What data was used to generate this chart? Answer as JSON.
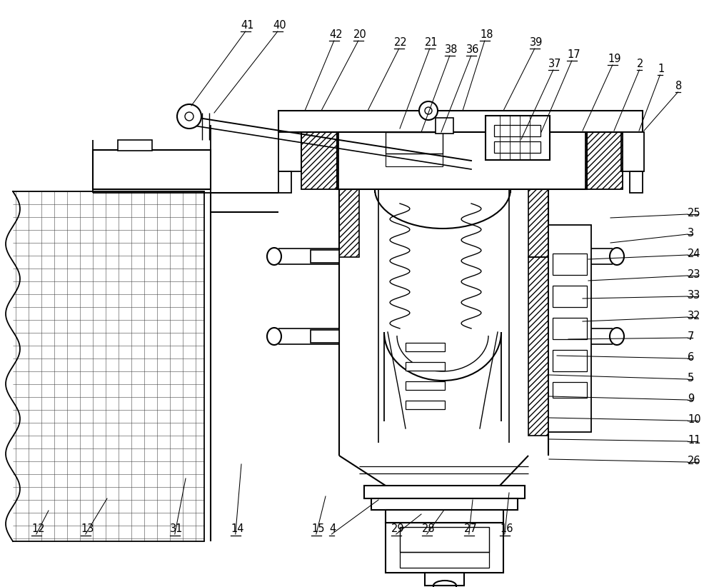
{
  "bg_color": "#ffffff",
  "lc": "#000000",
  "fig_w": 10.0,
  "fig_h": 8.22,
  "top_labels": [
    [
      "41",
      338,
      44
    ],
    [
      "40",
      383,
      44
    ],
    [
      "42",
      463,
      57
    ],
    [
      "20",
      497,
      57
    ],
    [
      "22",
      554,
      68
    ],
    [
      "21",
      597,
      68
    ],
    [
      "38",
      626,
      78
    ],
    [
      "36",
      656,
      78
    ],
    [
      "18",
      675,
      57
    ],
    [
      "39",
      745,
      68
    ],
    [
      "17",
      797,
      85
    ],
    [
      "37",
      771,
      98
    ],
    [
      "19",
      855,
      91
    ],
    [
      "2",
      896,
      98
    ],
    [
      "1",
      926,
      105
    ],
    [
      "8",
      950,
      130
    ]
  ],
  "right_labels": [
    [
      "25",
      965,
      295
    ],
    [
      "3",
      965,
      323
    ],
    [
      "24",
      965,
      352
    ],
    [
      "23",
      965,
      381
    ],
    [
      "33",
      965,
      410
    ],
    [
      "32",
      965,
      439
    ],
    [
      "7",
      965,
      468
    ],
    [
      "6",
      965,
      497
    ],
    [
      "5",
      965,
      526
    ],
    [
      "9",
      965,
      555
    ],
    [
      "10",
      965,
      584
    ],
    [
      "11",
      965,
      613
    ],
    [
      "26",
      965,
      642
    ]
  ],
  "bot_labels": [
    [
      "12",
      45,
      748
    ],
    [
      "13",
      115,
      748
    ],
    [
      "31",
      240,
      748
    ],
    [
      "14",
      325,
      748
    ],
    [
      "15",
      438,
      748
    ],
    [
      "4",
      463,
      748
    ],
    [
      "29",
      550,
      748
    ],
    [
      "28",
      593,
      748
    ],
    [
      "27",
      652,
      748
    ],
    [
      "16",
      702,
      748
    ]
  ]
}
